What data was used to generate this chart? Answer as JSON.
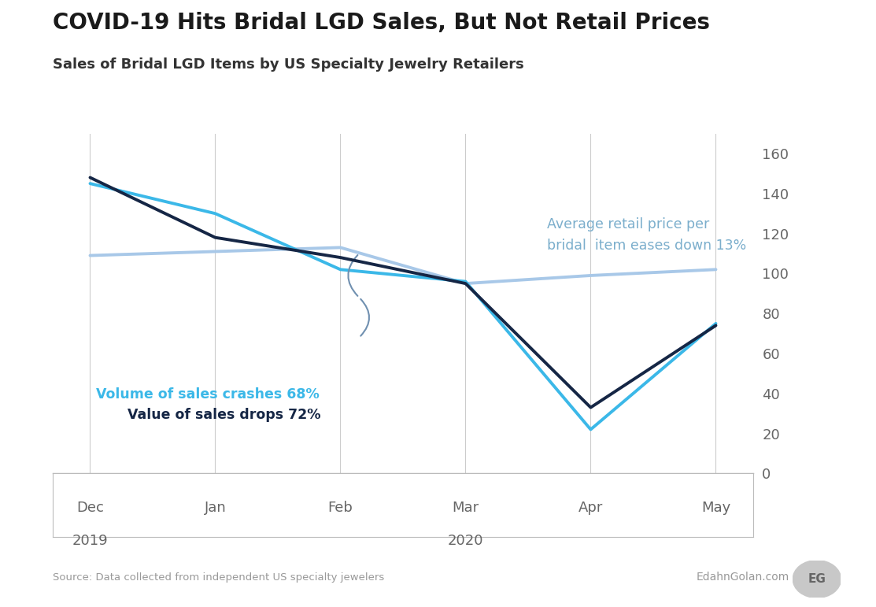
{
  "title": "COVID-19 Hits Bridal LGD Sales, But Not Retail Prices",
  "subtitle": "Sales of Bridal LGD Items by US Specialty Jewelry Retailers",
  "x_labels": [
    "Dec",
    "Jan",
    "Feb",
    "Mar",
    "Apr",
    "May"
  ],
  "volume_data": [
    145,
    130,
    102,
    96,
    22,
    75
  ],
  "value_data": [
    148,
    118,
    108,
    95,
    33,
    74
  ],
  "price_data": [
    109,
    111,
    113,
    95,
    99,
    102
  ],
  "volume_color": "#3BB8E8",
  "value_color": "#152645",
  "price_color": "#A8C8E8",
  "annotation_volume": "Volume of sales crashes 68%",
  "annotation_value": "Value of sales drops 72%",
  "annotation_price": "Average retail price per\nbridal  item eases down 13%",
  "annotation_volume_color": "#3BB8E8",
  "annotation_value_color": "#152645",
  "annotation_price_color": "#7BAECC",
  "source_text": "Source: Data collected from independent US specialty jewelers",
  "watermark_text": "EdahnGolan.com",
  "watermark_badge": "EG",
  "ylim": [
    0,
    170
  ],
  "yticks": [
    0,
    20,
    40,
    60,
    80,
    100,
    120,
    140,
    160
  ],
  "background_color": "#FFFFFF",
  "title_fontsize": 20,
  "subtitle_fontsize": 13,
  "annotation_fontsize": 12.5,
  "tick_fontsize": 13
}
